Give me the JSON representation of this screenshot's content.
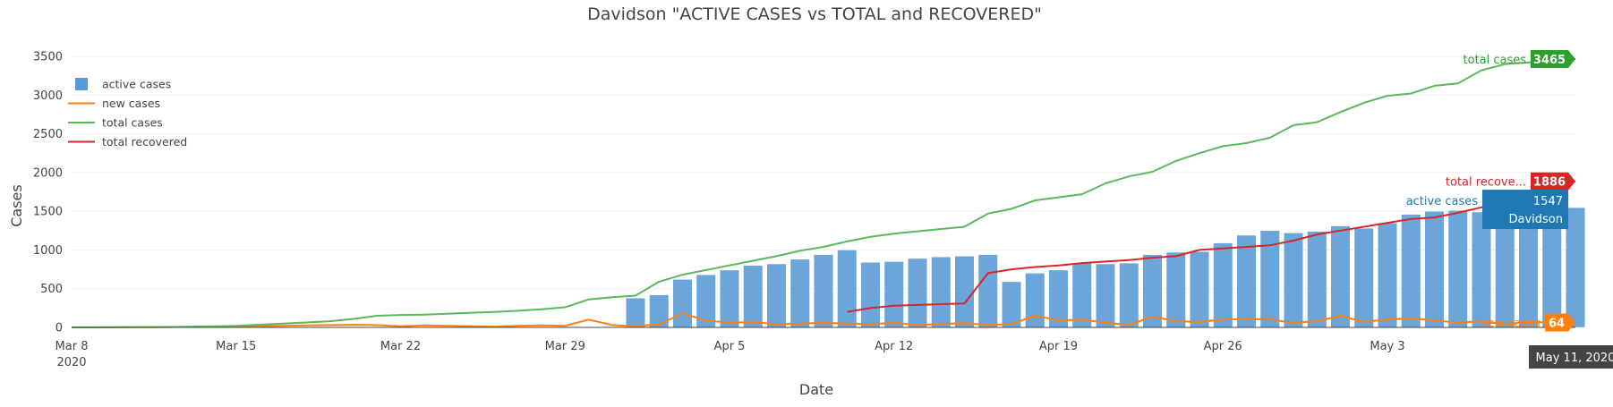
{
  "chart_data": {
    "type": "bar",
    "title": "Davidson \"ACTIVE CASES vs TOTAL and RECOVERED\"",
    "xlabel": "Date",
    "ylabel": "Cases",
    "ylim": [
      0,
      3650
    ],
    "x_start": "2020-03-08",
    "x_end": "2020-05-11",
    "x_ticks": [
      {
        "date": "2020-03-08",
        "label": "Mar 8",
        "sublabel": "2020"
      },
      {
        "date": "2020-03-15",
        "label": "Mar 15"
      },
      {
        "date": "2020-03-22",
        "label": "Mar 22"
      },
      {
        "date": "2020-03-29",
        "label": "Mar 29"
      },
      {
        "date": "2020-04-05",
        "label": "Apr 5"
      },
      {
        "date": "2020-04-12",
        "label": "Apr 12"
      },
      {
        "date": "2020-04-19",
        "label": "Apr 19"
      },
      {
        "date": "2020-04-26",
        "label": "Apr 26"
      },
      {
        "date": "2020-05-03",
        "label": "May 3"
      }
    ],
    "y_ticks": [
      0,
      500,
      1000,
      1500,
      2000,
      2500,
      3000,
      3500
    ],
    "grid": true,
    "legend_position": "top-left",
    "series": [
      {
        "name": "active cases",
        "kind": "bar",
        "color": "#5b9bd5",
        "x": [
          "2020-04-01",
          "2020-04-02",
          "2020-04-03",
          "2020-04-04",
          "2020-04-05",
          "2020-04-06",
          "2020-04-07",
          "2020-04-08",
          "2020-04-09",
          "2020-04-10",
          "2020-04-11",
          "2020-04-12",
          "2020-04-13",
          "2020-04-14",
          "2020-04-15",
          "2020-04-16",
          "2020-04-17",
          "2020-04-18",
          "2020-04-19",
          "2020-04-20",
          "2020-04-21",
          "2020-04-22",
          "2020-04-23",
          "2020-04-24",
          "2020-04-25",
          "2020-04-26",
          "2020-04-27",
          "2020-04-28",
          "2020-04-29",
          "2020-04-30",
          "2020-05-01",
          "2020-05-02",
          "2020-05-03",
          "2020-05-04",
          "2020-05-05",
          "2020-05-06",
          "2020-05-07",
          "2020-05-08",
          "2020-05-09",
          "2020-05-10",
          "2020-05-11"
        ],
        "values": [
          380,
          420,
          620,
          680,
          740,
          800,
          820,
          880,
          940,
          1000,
          840,
          850,
          890,
          910,
          920,
          940,
          590,
          700,
          740,
          830,
          820,
          830,
          940,
          970,
          980,
          1090,
          1190,
          1250,
          1220,
          1240,
          1310,
          1280,
          1350,
          1460,
          1500,
          1510,
          1490,
          1450,
          1500,
          1540,
          1547
        ]
      },
      {
        "name": "new cases",
        "kind": "line",
        "color": "#ff7f0e",
        "x": [
          "2020-03-08",
          "2020-03-12",
          "2020-03-15",
          "2020-03-18",
          "2020-03-20",
          "2020-03-21",
          "2020-03-22",
          "2020-03-23",
          "2020-03-24",
          "2020-03-25",
          "2020-03-26",
          "2020-03-27",
          "2020-03-28",
          "2020-03-29",
          "2020-03-30",
          "2020-03-31",
          "2020-04-01",
          "2020-04-02",
          "2020-04-03",
          "2020-04-04",
          "2020-04-05",
          "2020-04-06",
          "2020-04-07",
          "2020-04-08",
          "2020-04-09",
          "2020-04-10",
          "2020-04-11",
          "2020-04-12",
          "2020-04-13",
          "2020-04-14",
          "2020-04-15",
          "2020-04-16",
          "2020-04-17",
          "2020-04-18",
          "2020-04-19",
          "2020-04-20",
          "2020-04-21",
          "2020-04-22",
          "2020-04-23",
          "2020-04-24",
          "2020-04-25",
          "2020-04-26",
          "2020-04-27",
          "2020-04-28",
          "2020-04-29",
          "2020-04-30",
          "2020-05-01",
          "2020-05-02",
          "2020-05-03",
          "2020-05-04",
          "2020-05-05",
          "2020-05-06",
          "2020-05-07",
          "2020-05-08",
          "2020-05-09",
          "2020-05-10",
          "2020-05-11"
        ],
        "values": [
          0,
          5,
          10,
          25,
          35,
          30,
          15,
          25,
          20,
          15,
          10,
          20,
          25,
          20,
          100,
          30,
          15,
          40,
          180,
          90,
          60,
          70,
          40,
          50,
          60,
          50,
          40,
          60,
          30,
          45,
          55,
          30,
          45,
          150,
          90,
          100,
          60,
          30,
          140,
          80,
          70,
          100,
          110,
          100,
          60,
          80,
          150,
          70,
          100,
          120,
          90,
          60,
          80,
          40,
          70,
          60,
          64
        ]
      },
      {
        "name": "total cases",
        "kind": "line",
        "color": "#5cb85c",
        "x": [
          "2020-03-08",
          "2020-03-10",
          "2020-03-12",
          "2020-03-15",
          "2020-03-17",
          "2020-03-19",
          "2020-03-20",
          "2020-03-21",
          "2020-03-22",
          "2020-03-23",
          "2020-03-24",
          "2020-03-25",
          "2020-03-26",
          "2020-03-27",
          "2020-03-28",
          "2020-03-29",
          "2020-03-30",
          "2020-03-31",
          "2020-04-01",
          "2020-04-02",
          "2020-04-03",
          "2020-04-04",
          "2020-04-05",
          "2020-04-06",
          "2020-04-07",
          "2020-04-08",
          "2020-04-09",
          "2020-04-10",
          "2020-04-11",
          "2020-04-12",
          "2020-04-13",
          "2020-04-14",
          "2020-04-15",
          "2020-04-16",
          "2020-04-17",
          "2020-04-18",
          "2020-04-19",
          "2020-04-20",
          "2020-04-21",
          "2020-04-22",
          "2020-04-23",
          "2020-04-24",
          "2020-04-25",
          "2020-04-26",
          "2020-04-27",
          "2020-04-28",
          "2020-04-29",
          "2020-04-30",
          "2020-05-01",
          "2020-05-02",
          "2020-05-03",
          "2020-05-04",
          "2020-05-05",
          "2020-05-06",
          "2020-05-07",
          "2020-05-08",
          "2020-05-09",
          "2020-05-10",
          "2020-05-11"
        ],
        "values": [
          0,
          2,
          5,
          20,
          50,
          80,
          110,
          150,
          160,
          165,
          175,
          190,
          200,
          215,
          235,
          260,
          360,
          390,
          410,
          590,
          680,
          740,
          800,
          860,
          920,
          990,
          1040,
          1110,
          1170,
          1210,
          1240,
          1270,
          1300,
          1470,
          1530,
          1640,
          1680,
          1720,
          1860,
          1950,
          2010,
          2150,
          2250,
          2340,
          2380,
          2450,
          2610,
          2650,
          2780,
          2900,
          2990,
          3020,
          3120,
          3150,
          3320,
          3400,
          3420,
          3450,
          3465
        ]
      },
      {
        "name": "total recovered",
        "kind": "line",
        "color": "#d62728",
        "x": [
          "2020-04-10",
          "2020-04-11",
          "2020-04-12",
          "2020-04-13",
          "2020-04-14",
          "2020-04-15",
          "2020-04-16",
          "2020-04-17",
          "2020-04-18",
          "2020-04-19",
          "2020-04-20",
          "2020-04-21",
          "2020-04-22",
          "2020-04-23",
          "2020-04-24",
          "2020-04-25",
          "2020-04-26",
          "2020-04-27",
          "2020-04-28",
          "2020-04-29",
          "2020-04-30",
          "2020-05-01",
          "2020-05-02",
          "2020-05-03",
          "2020-05-04",
          "2020-05-05",
          "2020-05-06",
          "2020-05-07",
          "2020-05-08",
          "2020-05-09",
          "2020-05-10",
          "2020-05-11"
        ],
        "values": [
          200,
          250,
          280,
          290,
          300,
          310,
          700,
          750,
          780,
          800,
          830,
          850,
          870,
          900,
          920,
          1000,
          1020,
          1040,
          1060,
          1120,
          1200,
          1250,
          1300,
          1350,
          1400,
          1420,
          1480,
          1550,
          1620,
          1700,
          1800,
          1886
        ]
      }
    ],
    "hover": {
      "date_label": "May 11, 2020",
      "total_cases": {
        "name": "total cases",
        "value": "3465"
      },
      "total_recovered": {
        "name": "total recove...",
        "value": "1886"
      },
      "active_cases": {
        "name": "active cases",
        "value": "1547",
        "region": "Davidson"
      },
      "new_cases": {
        "name": "new cases",
        "value": "64"
      }
    }
  }
}
